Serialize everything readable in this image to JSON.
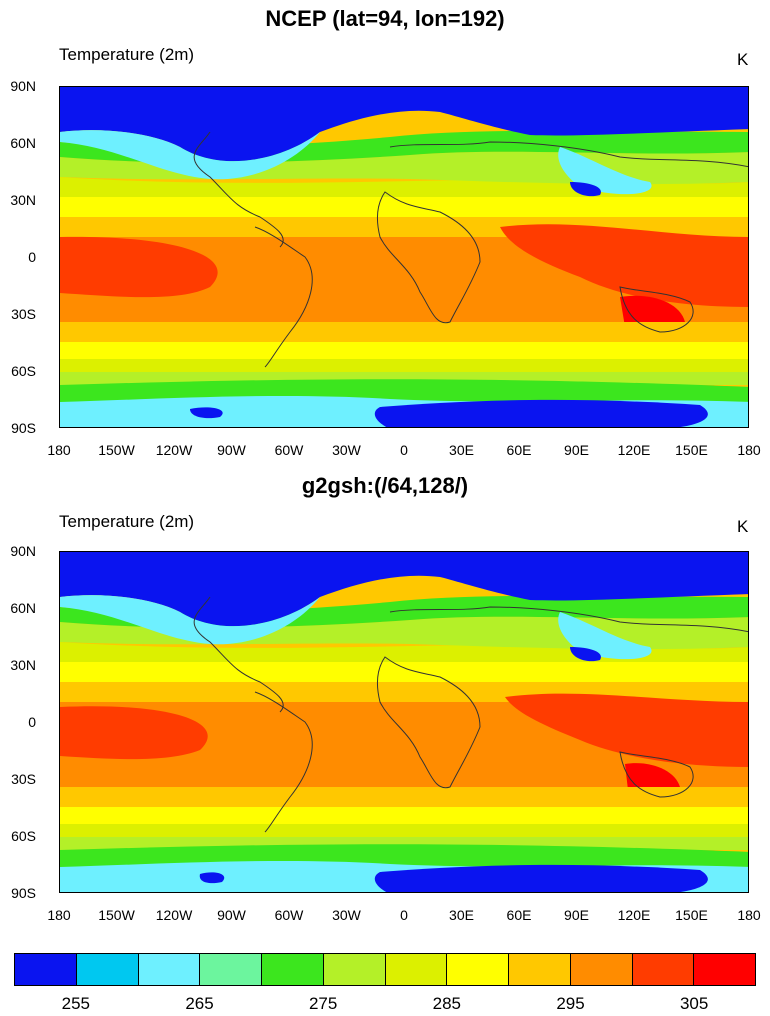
{
  "panels": [
    {
      "title": "NCEP (lat=94, lon=192)",
      "left_label": "Temperature (2m)",
      "right_label": "K",
      "lat_labels": [
        "90N",
        "60N",
        "30N",
        "0",
        "30S",
        "60S",
        "90S"
      ],
      "lon_labels": [
        "180",
        "150W",
        "120W",
        "90W",
        "60W",
        "30W",
        "0",
        "30E",
        "60E",
        "90E",
        "120E",
        "150E",
        "180"
      ]
    },
    {
      "title": "g2gsh:(/64,128/)",
      "left_label": "Temperature (2m)",
      "right_label": "K",
      "lat_labels": [
        "90N",
        "60N",
        "30N",
        "0",
        "30S",
        "60S",
        "90S"
      ],
      "lon_labels": [
        "180",
        "150W",
        "120W",
        "90W",
        "60W",
        "30W",
        "0",
        "30E",
        "60E",
        "90E",
        "120E",
        "150E",
        "180"
      ]
    }
  ],
  "colorbar": {
    "colors": [
      "#0a14f0",
      "#00c8f0",
      "#6ef0ff",
      "#6cf59e",
      "#3ce61e",
      "#b4f028",
      "#dcf000",
      "#ffff00",
      "#ffc800",
      "#ff8c00",
      "#ff3c00",
      "#ff0000"
    ],
    "labels": [
      "255",
      "265",
      "275",
      "285",
      "295",
      "305"
    ]
  }
}
